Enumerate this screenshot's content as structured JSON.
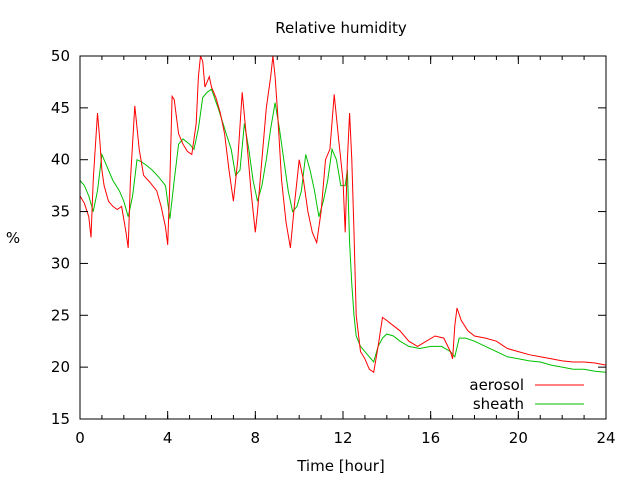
{
  "chart_data": {
    "type": "line",
    "title": "Relative humidity",
    "xlabel": "Time [hour]",
    "ylabel": "%",
    "xlim": [
      0,
      24
    ],
    "ylim": [
      15,
      50
    ],
    "xticks": [
      0,
      4,
      8,
      12,
      16,
      20,
      24
    ],
    "yticks": [
      15,
      20,
      25,
      30,
      35,
      40,
      45,
      50
    ],
    "grid": false,
    "legend_position": "bottom-right",
    "series": [
      {
        "name": "aerosol",
        "color": "#ff0000",
        "x": [
          0,
          0.2,
          0.4,
          0.5,
          0.6,
          0.8,
          0.9,
          1.0,
          1.1,
          1.3,
          1.5,
          1.7,
          1.9,
          2.1,
          2.2,
          2.3,
          2.5,
          2.7,
          2.9,
          3.2,
          3.5,
          3.7,
          3.9,
          4.0,
          4.1,
          4.2,
          4.3,
          4.5,
          4.7,
          4.9,
          5.1,
          5.3,
          5.4,
          5.5,
          5.6,
          5.7,
          5.8,
          5.9,
          6.0,
          6.2,
          6.4,
          6.6,
          6.8,
          7.0,
          7.2,
          7.4,
          7.6,
          7.8,
          8.0,
          8.1,
          8.3,
          8.5,
          8.7,
          8.8,
          8.9,
          9.0,
          9.2,
          9.4,
          9.6,
          9.8,
          10.0,
          10.2,
          10.4,
          10.6,
          10.8,
          11.0,
          11.2,
          11.4,
          11.6,
          11.8,
          12.0,
          12.1,
          12.2,
          12.3,
          12.4,
          12.5,
          12.6,
          12.8,
          13.0,
          13.2,
          13.4,
          13.6,
          13.8,
          14.0,
          14.3,
          14.6,
          15.0,
          15.4,
          15.8,
          16.2,
          16.6,
          16.9,
          17.0,
          17.1,
          17.2,
          17.4,
          17.7,
          18.0,
          18.5,
          19.0,
          19.5,
          20.0,
          20.5,
          21.0,
          21.5,
          22.0,
          22.5,
          23.0,
          23.5,
          24.0
        ],
        "y": [
          36.5,
          35.8,
          34.5,
          32.5,
          38,
          44.5,
          42,
          39,
          37.5,
          36,
          35.5,
          35.2,
          35.5,
          33,
          31.5,
          38,
          45.2,
          41,
          38.5,
          37.8,
          37,
          35.5,
          33.5,
          31.8,
          38,
          46.1,
          45.8,
          42.5,
          41.5,
          40.8,
          40.5,
          43.5,
          48,
          50,
          49.5,
          47,
          47.5,
          48,
          47,
          46,
          44.5,
          42.5,
          39,
          36,
          40,
          46.5,
          42,
          37,
          33,
          35,
          40,
          45,
          48,
          50,
          48,
          45,
          38,
          34,
          31.5,
          36,
          40,
          38,
          35,
          33,
          32,
          35,
          40,
          41,
          46.3,
          42,
          38,
          33,
          40,
          44.5,
          40,
          33,
          25,
          21.5,
          20.8,
          19.8,
          19.5,
          22,
          24.8,
          24.5,
          24,
          23.5,
          22.5,
          22,
          22.5,
          23,
          22.8,
          21.5,
          20.8,
          24,
          25.7,
          24.5,
          23.5,
          23,
          22.8,
          22.5,
          21.8,
          21.5,
          21.2,
          21,
          20.8,
          20.6,
          20.5,
          20.5,
          20.4,
          20.2
        ]
      },
      {
        "name": "sheath",
        "color": "#00c000",
        "x": [
          0,
          0.2,
          0.4,
          0.6,
          0.8,
          1.0,
          1.2,
          1.5,
          1.8,
          2.0,
          2.2,
          2.4,
          2.6,
          2.8,
          3.0,
          3.3,
          3.6,
          3.9,
          4.1,
          4.3,
          4.5,
          4.7,
          5.0,
          5.2,
          5.4,
          5.6,
          5.8,
          6.0,
          6.3,
          6.6,
          6.9,
          7.1,
          7.3,
          7.5,
          7.7,
          7.9,
          8.1,
          8.3,
          8.5,
          8.7,
          8.9,
          9.1,
          9.3,
          9.5,
          9.7,
          9.9,
          10.1,
          10.3,
          10.5,
          10.7,
          10.9,
          11.1,
          11.3,
          11.5,
          11.7,
          11.9,
          12.1,
          12.2,
          12.3,
          12.4,
          12.5,
          12.6,
          12.8,
          13.0,
          13.2,
          13.4,
          13.6,
          13.8,
          14.0,
          14.3,
          14.6,
          15.0,
          15.5,
          16.0,
          16.5,
          16.9,
          17.1,
          17.3,
          17.6,
          18.0,
          18.5,
          19.0,
          19.5,
          20.0,
          20.5,
          21.0,
          21.5,
          22.0,
          22.5,
          23.0,
          23.5,
          24.0
        ],
        "y": [
          38,
          37.5,
          36.5,
          35,
          37,
          40.5,
          39.5,
          38,
          37,
          36,
          34.5,
          36.5,
          40,
          39.8,
          39.5,
          39,
          38.3,
          37.5,
          34.3,
          38,
          41.5,
          42,
          41.5,
          41,
          43,
          46,
          46.5,
          46.8,
          45,
          43,
          41,
          38.5,
          39,
          43.5,
          41,
          38,
          36,
          37.5,
          40,
          43,
          45.5,
          43,
          40,
          37,
          35,
          35.5,
          37,
          40.5,
          39,
          37,
          34.5,
          36,
          38,
          41,
          40,
          37.5,
          37.5,
          39,
          32,
          28,
          25,
          23,
          22,
          21.5,
          21,
          20.5,
          22,
          22.8,
          23.2,
          23,
          22.5,
          22,
          21.8,
          22,
          22,
          21.5,
          21,
          22.8,
          22.8,
          22.5,
          22,
          21.5,
          21,
          20.8,
          20.6,
          20.5,
          20.2,
          20,
          19.8,
          19.8,
          19.6,
          19.5
        ]
      }
    ]
  }
}
